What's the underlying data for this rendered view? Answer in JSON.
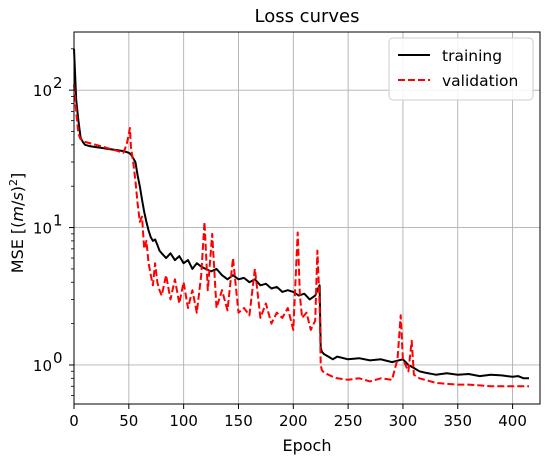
{
  "chart_data": {
    "type": "line",
    "title": "Loss curves",
    "xlabel": "Epoch",
    "ylabel_main": "MSE [(",
    "ylabel_var": "m",
    "ylabel_slash": "/",
    "ylabel_var2": "s",
    "ylabel_close": ")",
    "ylabel_sup": "2",
    "ylabel_end": "]",
    "xlim": [
      0,
      425
    ],
    "ylim": [
      0.52,
      265
    ],
    "yscale": "log",
    "grid": true,
    "legend_position": "top-right",
    "x_ticks": [
      0,
      50,
      100,
      150,
      200,
      250,
      300,
      350,
      400
    ],
    "x_tick_labels": [
      "0",
      "50",
      "100",
      "150",
      "200",
      "250",
      "300",
      "350",
      "400"
    ],
    "y_ticks": [
      1,
      10,
      100
    ],
    "y_tick_labels": [
      "10",
      "10",
      "10"
    ],
    "y_tick_exps": [
      "0",
      "1",
      "2"
    ],
    "series": [
      {
        "name": "training",
        "color": "#000000",
        "dash": "solid",
        "x": [
          0,
          2,
          4,
          6,
          8,
          10,
          15,
          20,
          25,
          30,
          35,
          40,
          45,
          48,
          50,
          52,
          54,
          56,
          58,
          60,
          62,
          64,
          66,
          68,
          70,
          72,
          74,
          76,
          78,
          80,
          84,
          88,
          92,
          96,
          100,
          104,
          108,
          112,
          116,
          120,
          125,
          130,
          135,
          140,
          145,
          150,
          155,
          160,
          165,
          170,
          175,
          180,
          185,
          190,
          195,
          200,
          205,
          210,
          215,
          220,
          222,
          224,
          225,
          226,
          228,
          232,
          236,
          240,
          250,
          260,
          270,
          280,
          290,
          300,
          305,
          310,
          315,
          320,
          330,
          340,
          350,
          360,
          370,
          380,
          390,
          400,
          405,
          410,
          415
        ],
        "y": [
          200,
          85,
          60,
          45,
          42,
          40,
          39,
          38.5,
          38,
          37.5,
          37,
          36.5,
          36,
          35.5,
          35,
          34,
          32,
          30,
          24,
          20,
          16,
          13,
          11,
          9.5,
          8.5,
          8,
          8.2,
          7.5,
          6.8,
          6.5,
          6,
          6.5,
          5.8,
          6.2,
          5.5,
          5.8,
          5,
          5.5,
          5.2,
          5,
          4.8,
          5,
          4.5,
          4.2,
          4.5,
          4.2,
          4.3,
          4,
          4.2,
          3.8,
          3.9,
          3.6,
          3.7,
          3.4,
          3.5,
          3.4,
          3.2,
          3.3,
          3,
          3.2,
          3.5,
          3.8,
          1.35,
          1.25,
          1.2,
          1.15,
          1.1,
          1.15,
          1.1,
          1.12,
          1.08,
          1.1,
          1.05,
          1.1,
          1.0,
          0.95,
          0.9,
          0.88,
          0.85,
          0.87,
          0.85,
          0.86,
          0.83,
          0.85,
          0.84,
          0.82,
          0.83,
          0.8,
          0.8
        ]
      },
      {
        "name": "validation",
        "color": "#ff0000",
        "dash": "dashed",
        "x": [
          0,
          2,
          4,
          6,
          8,
          10,
          15,
          20,
          25,
          30,
          35,
          40,
          45,
          48,
          50,
          51,
          52,
          54,
          56,
          58,
          60,
          62,
          64,
          66,
          68,
          70,
          72,
          74,
          76,
          78,
          80,
          84,
          88,
          92,
          96,
          100,
          104,
          108,
          112,
          116,
          119,
          122,
          126,
          130,
          135,
          140,
          145,
          150,
          155,
          160,
          165,
          170,
          175,
          180,
          185,
          190,
          195,
          200,
          204,
          206,
          208,
          212,
          216,
          220,
          222,
          224,
          225,
          226,
          228,
          232,
          236,
          240,
          250,
          260,
          270,
          280,
          290,
          295,
          298,
          300,
          305,
          308,
          310,
          315,
          320,
          330,
          340,
          350,
          360,
          370,
          380,
          390,
          400,
          410,
          415
        ],
        "y": [
          110,
          70,
          48,
          44,
          43,
          42,
          41,
          40,
          39,
          38,
          37,
          36,
          35,
          40,
          48,
          53,
          38,
          30,
          22,
          15,
          11,
          12,
          7,
          8,
          5.5,
          4.5,
          3.8,
          5.5,
          4,
          3.5,
          3.2,
          4.5,
          3,
          4.2,
          2.8,
          4,
          2.6,
          3.5,
          2.4,
          4.5,
          11,
          3.5,
          9,
          2.6,
          3.5,
          2.5,
          6,
          2.4,
          2.6,
          2.3,
          5,
          2.2,
          2.8,
          2,
          2.4,
          2.2,
          2.6,
          1.8,
          9.2,
          3.2,
          2.2,
          2.4,
          1.8,
          2.1,
          6.8,
          2.8,
          1.0,
          0.92,
          0.88,
          0.85,
          0.82,
          0.8,
          0.78,
          0.8,
          0.76,
          0.8,
          0.78,
          1.1,
          2.3,
          1.1,
          0.9,
          1.5,
          0.85,
          0.8,
          0.78,
          0.74,
          0.73,
          0.72,
          0.72,
          0.71,
          0.7,
          0.7,
          0.7,
          0.7,
          0.7
        ]
      }
    ]
  }
}
